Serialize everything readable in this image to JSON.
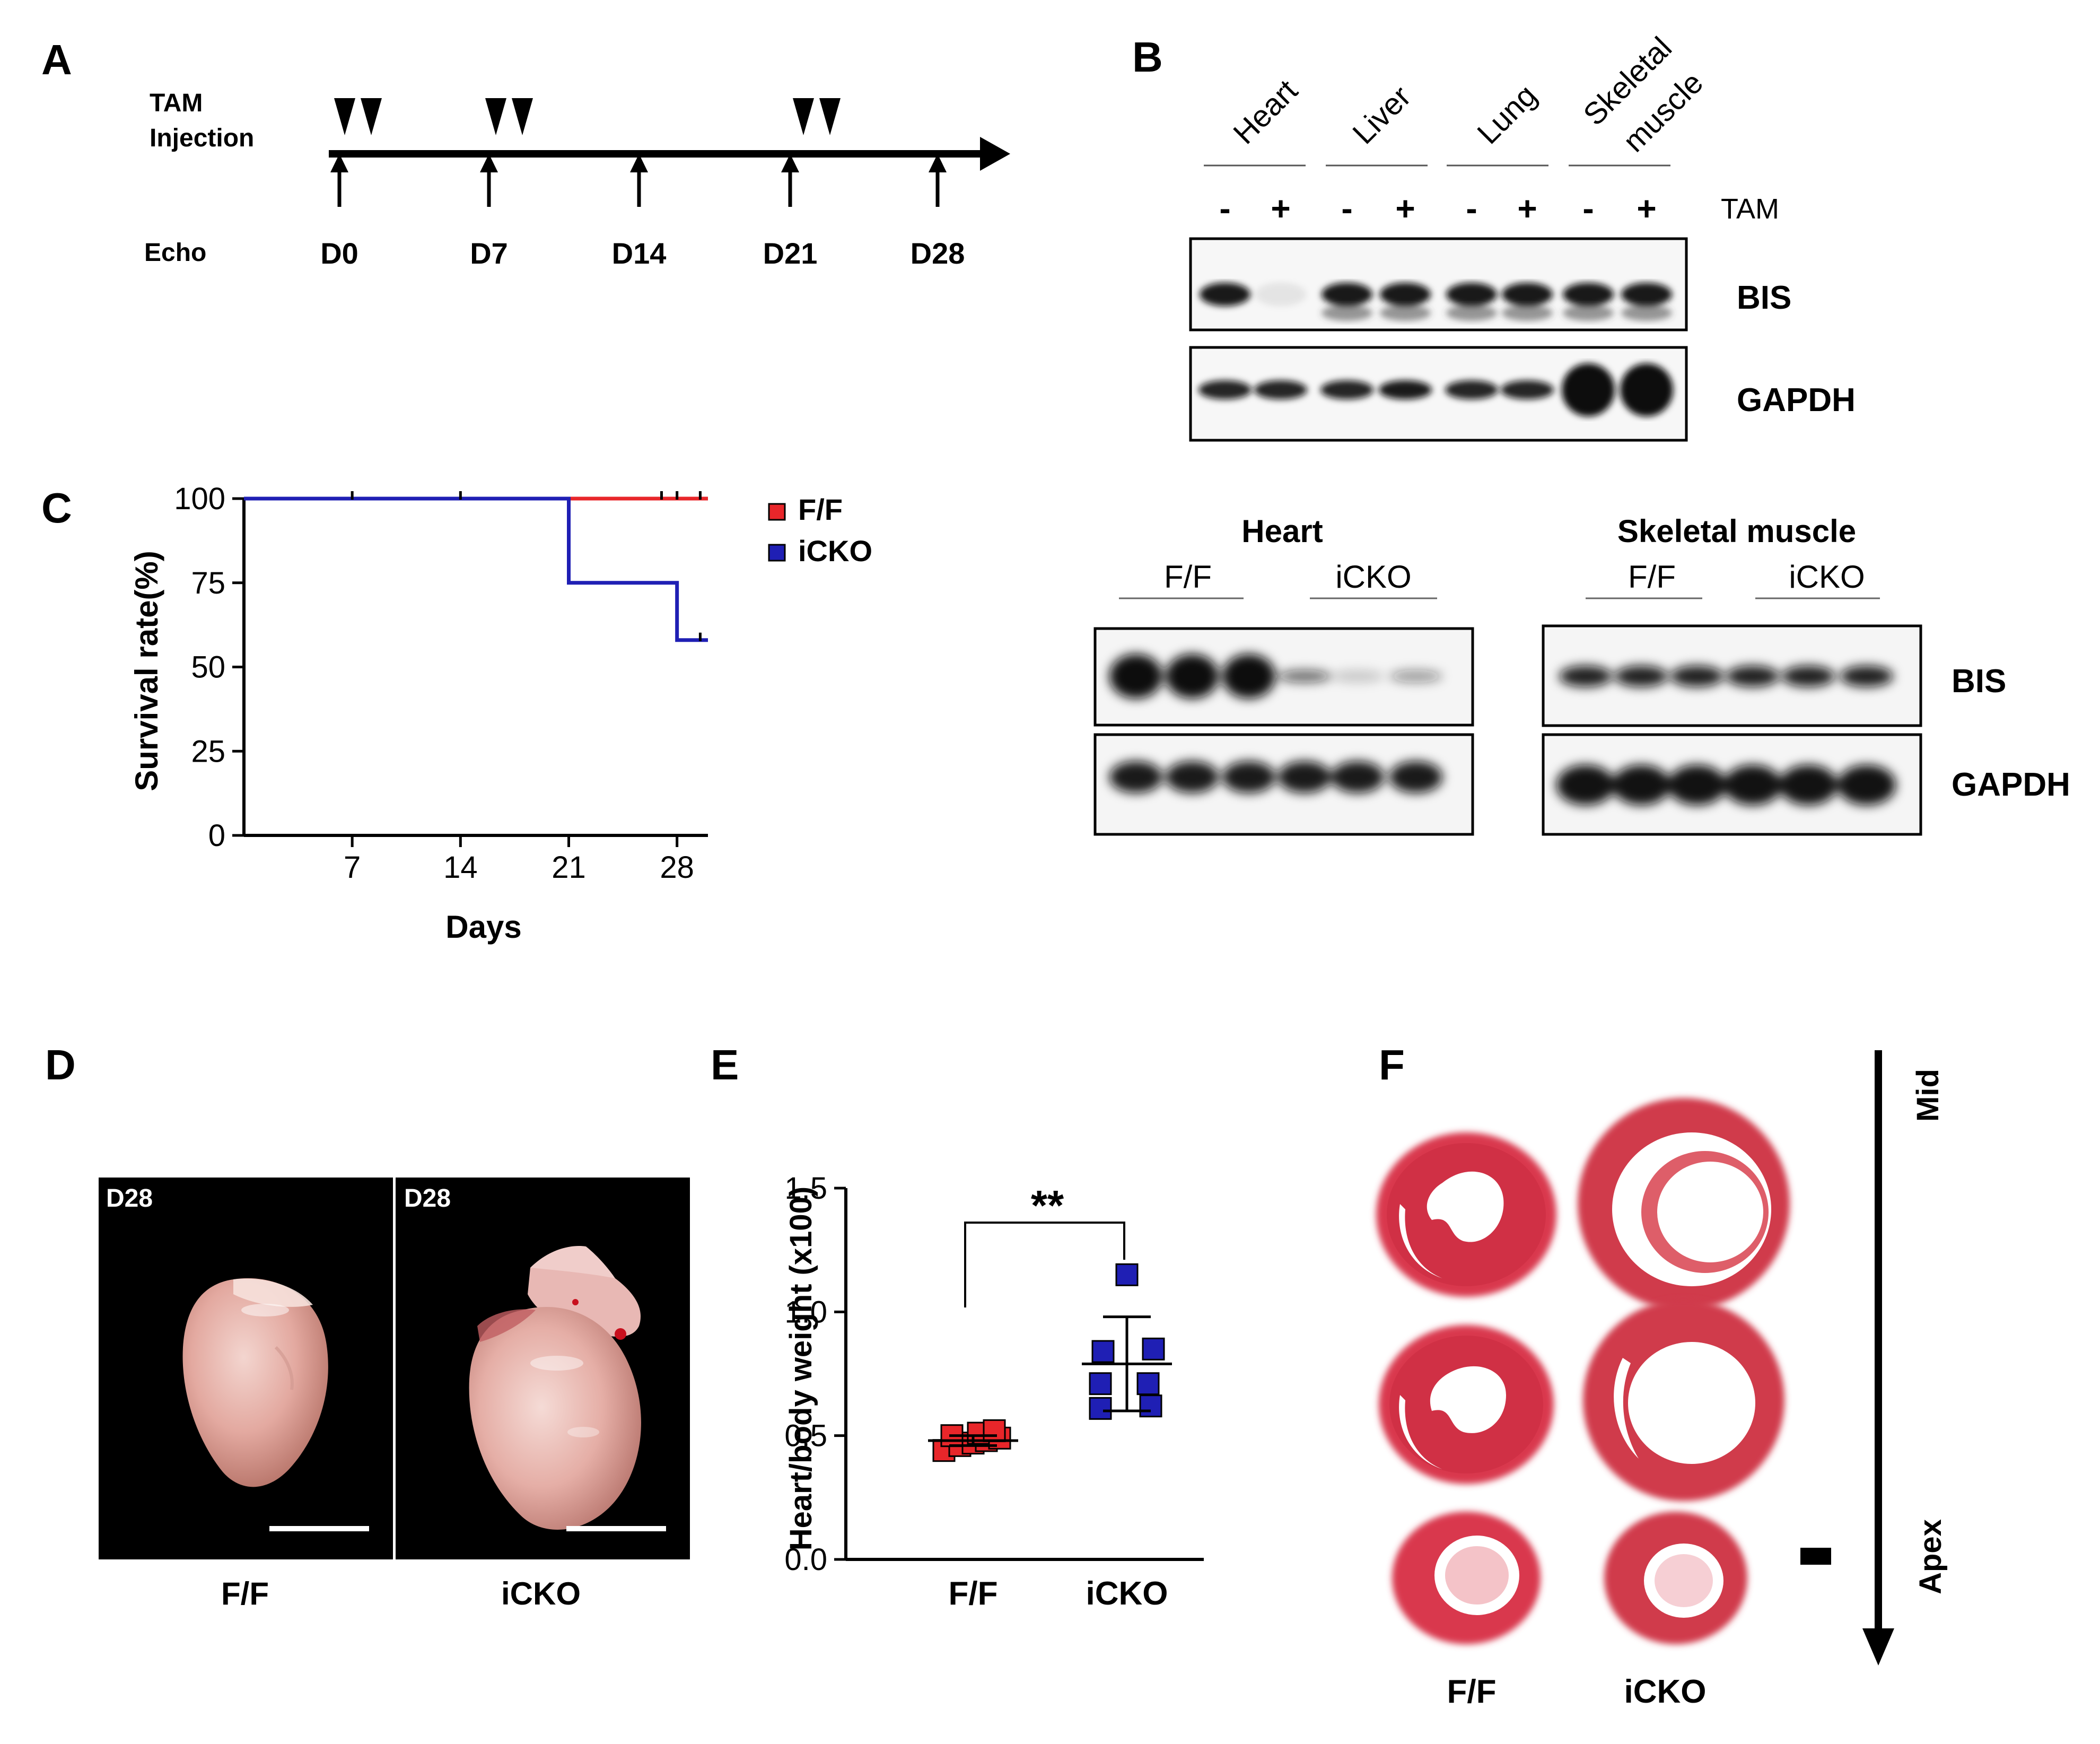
{
  "panels": {
    "A": "A",
    "B": "B",
    "C": "C",
    "D": "D",
    "E": "E",
    "F": "F"
  },
  "panel_a": {
    "tam_label": "TAM",
    "injection_label": "Injection",
    "echo_label": "Echo",
    "days": [
      "D0",
      "D7",
      "D14",
      "D21",
      "D28"
    ]
  },
  "panel_b": {
    "tissues": [
      "Heart",
      "Liver",
      "Lung",
      "Skeletal muscle"
    ],
    "tissue_line1": [
      "Heart",
      "Liver",
      "Lung",
      "Skeletal"
    ],
    "tissue_line2": [
      "",
      "",
      "",
      "muscle"
    ],
    "signs": [
      "-",
      "+",
      "-",
      "+",
      "-",
      "+",
      "-",
      "+"
    ],
    "tam_label": "TAM",
    "bands": [
      "BIS",
      "GAPDH"
    ],
    "lower_left_title": "Heart",
    "lower_right_title": "Skeletal muscle",
    "group_ff": "F/F",
    "group_icko": "iCKO"
  },
  "chart_data": [
    {
      "type": "line",
      "panel": "C",
      "xlabel": "Days",
      "ylabel": "Survival rate(%)",
      "xticks": [
        7,
        14,
        21,
        28
      ],
      "yticks": [
        0,
        25,
        50,
        75,
        100
      ],
      "xlim": [
        0,
        30
      ],
      "ylim": [
        0,
        100
      ],
      "series": [
        {
          "name": "F/F",
          "color": "#e8262a",
          "x": [
            0,
            21,
            28,
            30
          ],
          "y": [
            100,
            100,
            100,
            100
          ]
        },
        {
          "name": "iCKO",
          "color": "#1f1fb4",
          "x": [
            0,
            21,
            21,
            28,
            28,
            30
          ],
          "y": [
            100,
            100,
            75,
            75,
            58,
            58
          ]
        }
      ]
    },
    {
      "type": "scatter",
      "panel": "E",
      "ylabel": "Heart/body weight (x100)",
      "categories": [
        "F/F",
        "iCKO"
      ],
      "yticks": [
        0.0,
        0.5,
        1.0,
        1.5
      ],
      "ytick_labels": [
        "0.0",
        "0.5",
        "1.0",
        "1.5"
      ],
      "ylim": [
        0,
        1.5
      ],
      "significance": "**",
      "series": [
        {
          "name": "F/F",
          "color": "#e8262a",
          "values": [
            0.44,
            0.46,
            0.47,
            0.48,
            0.49,
            0.5,
            0.51,
            0.52
          ],
          "mean": 0.48,
          "sd": 0.02
        },
        {
          "name": "iCKO",
          "color": "#1f1fb4",
          "values": [
            0.61,
            0.62,
            0.71,
            0.71,
            0.84,
            0.85,
            1.15
          ],
          "mean": 0.79,
          "sd": 0.19
        }
      ]
    }
  ],
  "panel_d": {
    "photo_labels": [
      "D28",
      "D28"
    ],
    "captions": [
      "F/F",
      "iCKO"
    ]
  },
  "panel_f": {
    "captions": [
      "F/F",
      "iCKO"
    ],
    "mid_label": "Mid",
    "apex_label": "Apex"
  }
}
